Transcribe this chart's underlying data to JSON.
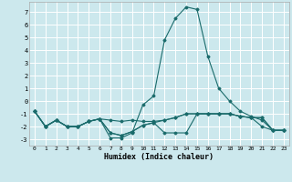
{
  "xlabel": "Humidex (Indice chaleur)",
  "ylabel": "",
  "bg_color": "#cce8ed",
  "grid_color": "#ffffff",
  "line_color": "#1a6b6b",
  "xlim": [
    -0.5,
    23.5
  ],
  "ylim": [
    -3.5,
    7.8
  ],
  "xticks": [
    0,
    1,
    2,
    3,
    4,
    5,
    6,
    7,
    8,
    9,
    10,
    11,
    12,
    13,
    14,
    15,
    16,
    17,
    18,
    19,
    20,
    21,
    22,
    23
  ],
  "yticks": [
    -3,
    -2,
    -1,
    0,
    1,
    2,
    3,
    4,
    5,
    6,
    7
  ],
  "series": [
    {
      "x": [
        0,
        1,
        2,
        3,
        4,
        5,
        6,
        7,
        8,
        9,
        10,
        11,
        12,
        13,
        14,
        15,
        16,
        17,
        18,
        19,
        20,
        21,
        22,
        23
      ],
      "y": [
        -0.8,
        -2.0,
        -1.5,
        -2.0,
        -2.0,
        -1.6,
        -1.4,
        -1.5,
        -1.6,
        -1.5,
        -1.6,
        -1.6,
        -1.5,
        -1.3,
        -1.0,
        -1.0,
        -1.0,
        -1.0,
        -1.0,
        -1.2,
        -1.3,
        -1.3,
        -2.3,
        -2.3
      ]
    },
    {
      "x": [
        0,
        1,
        2,
        3,
        4,
        5,
        6,
        7,
        8,
        9,
        10,
        11,
        12,
        13,
        14,
        15,
        16,
        17,
        18,
        19,
        20,
        21,
        22,
        23
      ],
      "y": [
        -0.8,
        -2.0,
        -1.5,
        -2.0,
        -2.0,
        -1.6,
        -1.4,
        -2.9,
        -2.9,
        -2.5,
        -0.3,
        0.4,
        4.8,
        6.5,
        7.4,
        7.2,
        3.5,
        1.0,
        0.0,
        -0.8,
        -1.2,
        -1.5,
        -2.3,
        -2.3
      ]
    },
    {
      "x": [
        0,
        1,
        2,
        3,
        4,
        5,
        6,
        7,
        8,
        9,
        10,
        11,
        12,
        13,
        14,
        15,
        16,
        17,
        18,
        19,
        20,
        21,
        22,
        23
      ],
      "y": [
        -0.8,
        -2.0,
        -1.5,
        -2.0,
        -2.0,
        -1.6,
        -1.4,
        -2.5,
        -2.7,
        -2.4,
        -1.9,
        -1.7,
        -1.5,
        -1.3,
        -1.0,
        -1.0,
        -1.0,
        -1.0,
        -1.0,
        -1.2,
        -1.3,
        -1.3,
        -2.3,
        -2.3
      ]
    },
    {
      "x": [
        0,
        1,
        2,
        3,
        4,
        5,
        6,
        7,
        8,
        9,
        10,
        11,
        12,
        13,
        14,
        15,
        16,
        17,
        18,
        19,
        20,
        21,
        22,
        23
      ],
      "y": [
        -0.8,
        -2.0,
        -1.5,
        -2.0,
        -2.0,
        -1.6,
        -1.4,
        -2.5,
        -2.7,
        -2.4,
        -1.9,
        -1.7,
        -2.5,
        -2.5,
        -2.5,
        -1.0,
        -1.0,
        -1.0,
        -1.0,
        -1.2,
        -1.3,
        -2.0,
        -2.3,
        -2.3
      ]
    }
  ]
}
